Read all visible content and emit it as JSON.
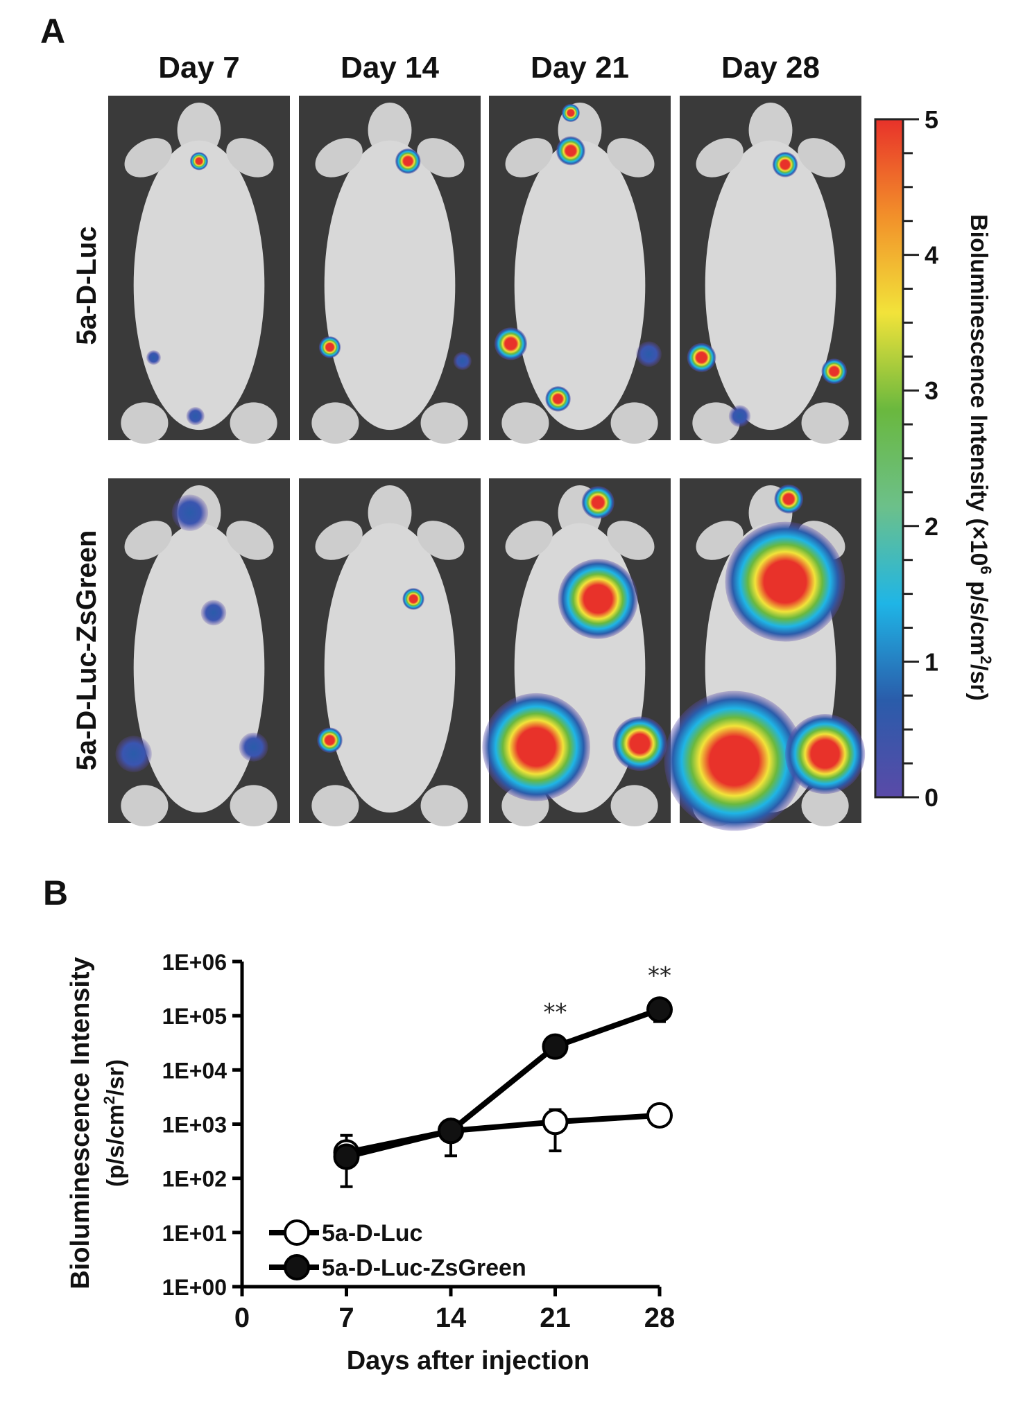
{
  "panel_a": {
    "label": "A",
    "columns": [
      "Day 7",
      "Day 14",
      "Day 21",
      "Day 28"
    ],
    "rows": [
      "5a-D-Luc",
      "5a-D-Luc-ZsGreen"
    ],
    "colorbar": {
      "title": "Bioluminescence Intensity (×10",
      "title_sup": "6",
      "title_tail": " p/s/cm",
      "title_sup2": "2",
      "title_end": "/sr)",
      "ticks": [
        "0",
        "1",
        "2",
        "3",
        "4",
        "5"
      ],
      "range": [
        0,
        5
      ],
      "colors": [
        "#5a4aa8",
        "#2a5caa",
        "#1fb5e6",
        "#6cc08a",
        "#6ab83e",
        "#f2e33a",
        "#f2902a",
        "#e8322a"
      ]
    }
  },
  "panel_b": {
    "label": "B"
  },
  "chart_data": {
    "type": "line",
    "xlabel": "Days after injection",
    "ylabel": "Bioluminescence Intensity",
    "ylabel2": "(p/s/cm",
    "ylabel2_sup": "2",
    "ylabel2_end": "/sr)",
    "y_scale": "log",
    "ylim": [
      1,
      1000000
    ],
    "xlim": [
      0,
      28
    ],
    "x_ticks": [
      "0",
      "7",
      "14",
      "21",
      "28"
    ],
    "y_ticks": [
      "1E+00",
      "1E+01",
      "1E+02",
      "1E+03",
      "1E+04",
      "1E+05",
      "1E+06"
    ],
    "legend_position": "bottom-left",
    "series": [
      {
        "name": "5a-D-Luc",
        "marker": "open-circle",
        "x": [
          7,
          14,
          21,
          28
        ],
        "y": [
          300,
          750,
          1100,
          1450
        ],
        "err_low": [
          null,
          null,
          320,
          null
        ],
        "err_high": [
          620,
          null,
          1850,
          null
        ]
      },
      {
        "name": "5a-D-Luc-ZsGreen",
        "marker": "filled-circle",
        "x": [
          7,
          14,
          21,
          28
        ],
        "y": [
          250,
          750,
          27000,
          130000
        ],
        "err_low": [
          70,
          260,
          null,
          78000
        ],
        "err_high": [
          null,
          1100,
          null,
          null
        ]
      }
    ],
    "annotations": [
      {
        "x": 21,
        "text": "**"
      },
      {
        "x": 28,
        "text": "**"
      }
    ]
  }
}
